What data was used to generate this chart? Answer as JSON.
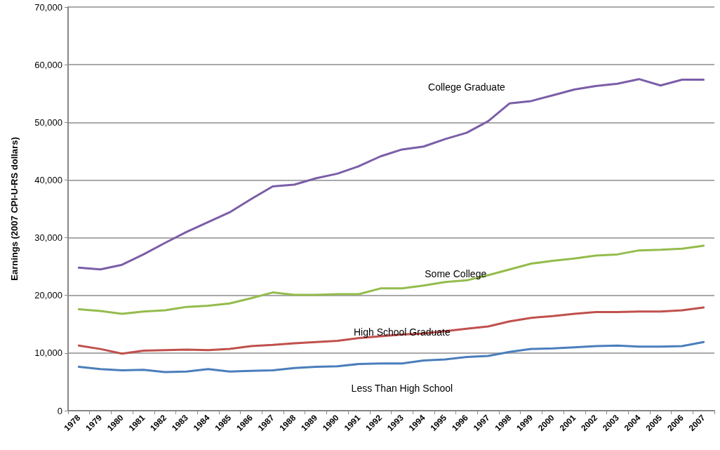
{
  "chart_data": {
    "type": "line",
    "ylabel": "Earnings (2007 CPI-U-RS dollars)",
    "categories": [
      "1978",
      "1979",
      "1980",
      "1981",
      "1982",
      "1983",
      "1984",
      "1985",
      "1986",
      "1987",
      "1988",
      "1989",
      "1990",
      "1991",
      "1992",
      "1993",
      "1994",
      "1995",
      "1996",
      "1997",
      "1998",
      "1999",
      "2000",
      "2001",
      "2002",
      "2003",
      "2004",
      "2005",
      "2006",
      "2007"
    ],
    "series": [
      {
        "name": "College Graduate",
        "color": "#7b5ea8",
        "values": [
          24800,
          24500,
          25300,
          27100,
          29100,
          31000,
          32700,
          34400,
          36700,
          38900,
          39200,
          40300,
          41100,
          42400,
          44100,
          45300,
          45800,
          47100,
          48200,
          50200,
          53300,
          53700,
          54700,
          55700,
          56300,
          56700,
          57500,
          56400,
          57400,
          57400
        ]
      },
      {
        "name": "Some College",
        "color": "#94bc4c",
        "values": [
          17600,
          17300,
          16800,
          17200,
          17400,
          18000,
          18200,
          18600,
          19500,
          20500,
          20100,
          20100,
          20200,
          20200,
          21200,
          21200,
          21700,
          22300,
          22600,
          23500,
          24500,
          25500,
          26000,
          26400,
          26900,
          27100,
          27800,
          27900,
          28100,
          28600
        ]
      },
      {
        "name": "High School Graduate",
        "color": "#c0504d",
        "values": [
          11300,
          10700,
          9900,
          10400,
          10500,
          10600,
          10500,
          10700,
          11200,
          11400,
          11700,
          11900,
          12100,
          12600,
          12900,
          13200,
          13400,
          13800,
          14200,
          14600,
          15500,
          16100,
          16400,
          16800,
          17100,
          17100,
          17200,
          17200,
          17400,
          17900
        ]
      },
      {
        "name": "Less Than High School",
        "color": "#4a7ebb",
        "values": [
          7600,
          7200,
          7000,
          7100,
          6700,
          6800,
          7200,
          6800,
          6900,
          7000,
          7400,
          7600,
          7700,
          8100,
          8200,
          8200,
          8700,
          8900,
          9300,
          9500,
          10200,
          10700,
          10800,
          11000,
          11200,
          11300,
          11100,
          11100,
          11200,
          11900
        ]
      }
    ],
    "ylim": [
      0,
      70000
    ],
    "yticks": [
      {
        "value": 0,
        "label": "0"
      },
      {
        "value": 10000,
        "label": "10,000"
      },
      {
        "value": 20000,
        "label": "20,000"
      },
      {
        "value": 30000,
        "label": "30,000"
      },
      {
        "value": 40000,
        "label": "40,000"
      },
      {
        "value": 50000,
        "label": "50,000"
      },
      {
        "value": 60000,
        "label": "60,000"
      },
      {
        "value": 70000,
        "label": "70,000"
      }
    ],
    "grid": "y",
    "legend": false,
    "marker": "none",
    "line_style": "solid"
  }
}
